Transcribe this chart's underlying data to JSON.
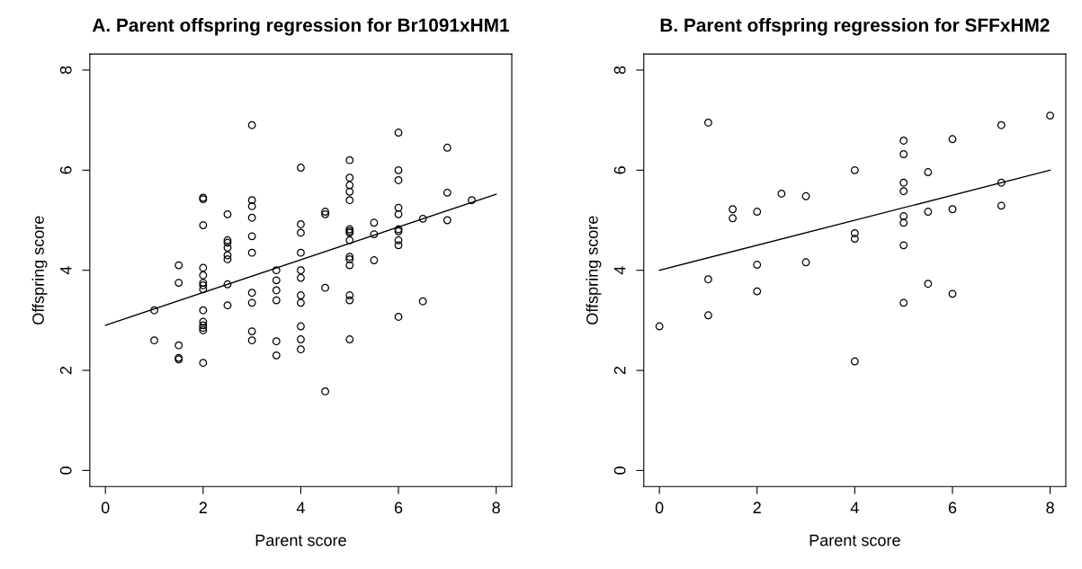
{
  "chart_data": [
    {
      "type": "scatter",
      "title": "A. Parent offspring regression for Br1091xHM1",
      "xlabel": "Parent score",
      "ylabel": "Offspring score",
      "xlim": [
        -0.32,
        8.32
      ],
      "ylim": [
        -0.32,
        8.32
      ],
      "xticks": [
        0,
        2,
        4,
        6,
        8
      ],
      "yticks": [
        0,
        2,
        4,
        6,
        8
      ],
      "grid": false,
      "legend": false,
      "marker": "circle",
      "series": [
        {
          "color": "#000000",
          "x": [
            1,
            1,
            1.5,
            1.5,
            1.5,
            1.5,
            1.5,
            2,
            2,
            2,
            2,
            2,
            2,
            2,
            2,
            2,
            2,
            2,
            2,
            2,
            2,
            2.5,
            2.5,
            2.5,
            2.5,
            2.5,
            2.5,
            2.5,
            2.5,
            3,
            3,
            3,
            3,
            3,
            3,
            3,
            3,
            3,
            3,
            3.5,
            3.5,
            3.5,
            3.5,
            3.5,
            3.5,
            4,
            4,
            4,
            4,
            4,
            4,
            4,
            4,
            4,
            4,
            4,
            4.5,
            4.5,
            4.5,
            4.5,
            5,
            5,
            5,
            5,
            5,
            5,
            5,
            5,
            5,
            5,
            5,
            5,
            5,
            5,
            5,
            5.5,
            5.5,
            5.5,
            6,
            6,
            6,
            6,
            6,
            6,
            6,
            6,
            6,
            6,
            6.5,
            6.5,
            7,
            7,
            7,
            7.5
          ],
          "values": [
            3.2,
            2.6,
            4.1,
            3.75,
            2.5,
            2.25,
            2.22,
            5.45,
            5.42,
            4.9,
            4.05,
            3.9,
            3.75,
            3.7,
            3.62,
            3.2,
            2.97,
            2.9,
            2.85,
            2.8,
            2.15,
            5.12,
            4.6,
            4.55,
            4.45,
            4.3,
            4.22,
            3.72,
            3.3,
            6.9,
            5.4,
            5.28,
            5.05,
            4.68,
            4.35,
            3.55,
            3.35,
            2.78,
            2.6,
            4.0,
            3.8,
            3.6,
            3.4,
            2.58,
            2.3,
            6.05,
            4.92,
            4.75,
            4.35,
            4.0,
            3.85,
            3.5,
            3.35,
            2.88,
            2.62,
            2.42,
            5.17,
            5.12,
            3.65,
            1.58,
            6.2,
            5.85,
            5.7,
            5.57,
            5.4,
            4.82,
            4.78,
            4.75,
            4.6,
            4.27,
            4.22,
            4.1,
            3.5,
            3.4,
            2.62,
            4.95,
            4.72,
            4.2,
            6.75,
            6.0,
            5.8,
            5.25,
            5.12,
            4.82,
            4.78,
            4.6,
            4.5,
            3.07,
            5.03,
            3.38,
            6.45,
            5.55,
            5.0,
            5.4
          ]
        },
        {
          "type": "line",
          "color": "#000000",
          "x": [
            0,
            8
          ],
          "values": [
            2.9,
            5.52
          ],
          "line_style": "solid",
          "marker": "none"
        }
      ]
    },
    {
      "type": "scatter",
      "title": "B. Parent offspring regression for SFFxHM2",
      "xlabel": "Parent score",
      "ylabel": "Offspring score",
      "xlim": [
        -0.32,
        8.32
      ],
      "ylim": [
        -0.32,
        8.32
      ],
      "xticks": [
        0,
        2,
        4,
        6,
        8
      ],
      "yticks": [
        0,
        2,
        4,
        6,
        8
      ],
      "grid": false,
      "legend": false,
      "marker": "circle",
      "series": [
        {
          "color": "#000000",
          "x": [
            0,
            1,
            1,
            1,
            1.5,
            1.5,
            2,
            2,
            2,
            2.5,
            3,
            3,
            4,
            4,
            4,
            4,
            5,
            5,
            5,
            5,
            5,
            5,
            5,
            5,
            5.5,
            5.5,
            5.5,
            6,
            6,
            6,
            7,
            7,
            7,
            8
          ],
          "values": [
            2.88,
            6.95,
            3.82,
            3.1,
            5.22,
            5.04,
            5.17,
            4.11,
            3.58,
            5.53,
            5.48,
            4.16,
            6.0,
            4.74,
            4.63,
            2.18,
            6.59,
            6.32,
            5.75,
            5.58,
            5.08,
            4.95,
            4.5,
            3.35,
            5.96,
            5.17,
            3.73,
            6.62,
            5.22,
            3.53,
            6.9,
            5.75,
            5.29,
            7.09
          ]
        },
        {
          "type": "line",
          "color": "#000000",
          "x": [
            0,
            8
          ],
          "values": [
            4.0,
            6.0
          ],
          "line_style": "solid",
          "marker": "none"
        }
      ]
    }
  ]
}
